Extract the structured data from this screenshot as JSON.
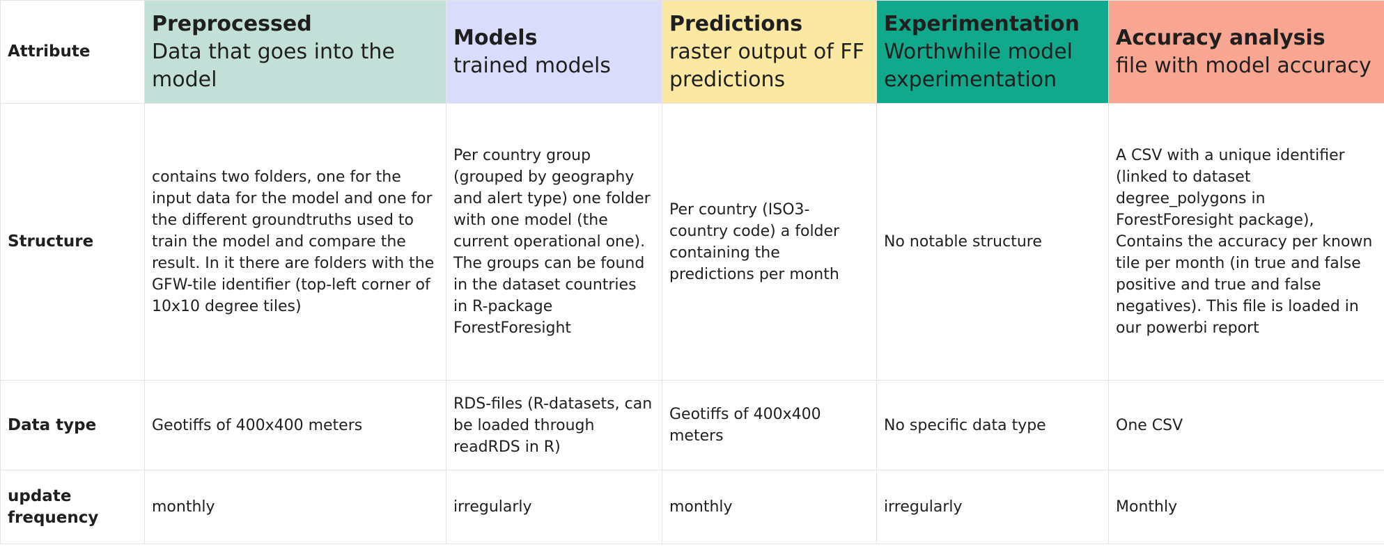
{
  "colors": {
    "preprocessed": "#c3e0d8",
    "models": "#d9dcfb",
    "predictions": "#fbe8a2",
    "experimentation": "#10a98b",
    "accuracy": "#f8a592"
  },
  "header": {
    "attribute_label": "Attribute",
    "columns": [
      {
        "title": "Preprocessed",
        "desc": "Data that goes into the model"
      },
      {
        "title": "Models",
        "desc": "trained models"
      },
      {
        "title": "Predictions",
        "desc": "raster output of FF predictions"
      },
      {
        "title": "Experimentation",
        "desc": "Worthwhile model experimentation"
      },
      {
        "title": "Accuracy analysis",
        "desc": "file with model accuracy"
      }
    ]
  },
  "rows": [
    {
      "attribute": "Structure",
      "cells": [
        "contains two folders, one for the input data for the model and one for the different groundtruths used to train the model and compare the result. In it there are folders with the GFW-tile identifier (top-left corner of 10x10 degree tiles)",
        "Per country group (grouped by geography and alert type) one folder with one model (the current operational one). The groups can be found in the dataset countries in R-package ForestForesight",
        "Per country (ISO3- country code) a folder containing the predictions per month",
        "No notable structure",
        "A CSV with a unique identifier (linked to dataset degree_polygons in ForestForesight package), Contains the accuracy per known tile per month (in true and false positive and true and false negatives). This file is loaded in our powerbi report"
      ]
    },
    {
      "attribute": "Data type",
      "cells": [
        "Geotiffs of 400x400 meters",
        "RDS-files (R-datasets, can be loaded through readRDS in R)",
        "Geotiffs of 400x400 meters",
        "No specific data type",
        "One CSV"
      ]
    },
    {
      "attribute": "update frequency",
      "cells": [
        "monthly",
        "irregularly",
        "monthly",
        "irregularly",
        "Monthly"
      ]
    }
  ]
}
